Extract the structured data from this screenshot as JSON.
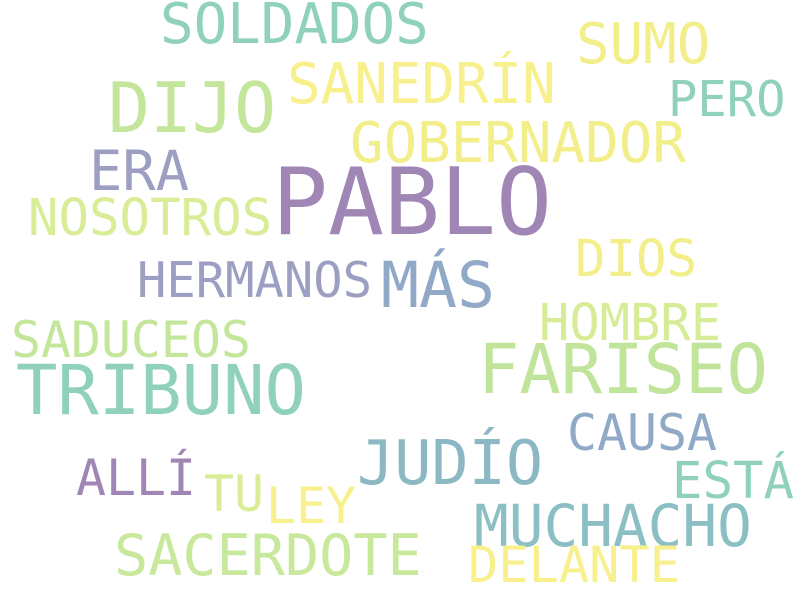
{
  "wordcloud": {
    "words": [
      {
        "text": "PABLO",
        "color": "#9f86b5"
      },
      {
        "text": "FARISEO",
        "color": "#bfe49a"
      },
      {
        "text": "TRIBUNO",
        "color": "#8fd1bb"
      },
      {
        "text": "DIJO",
        "color": "#c4e69b"
      },
      {
        "text": "JUDÍO",
        "color": "#8bb8c2"
      },
      {
        "text": "GOBERNADOR",
        "color": "#f2ee8a"
      },
      {
        "text": "SANEDRÍN",
        "color": "#f7f08d"
      },
      {
        "text": "SOLDADOS",
        "color": "#8fd1bb"
      },
      {
        "text": "MUCHACHO",
        "color": "#8bbfc4"
      },
      {
        "text": "SACERDOTE",
        "color": "#c8e89c"
      },
      {
        "text": "MÁS",
        "color": "#8fa9c6"
      },
      {
        "text": "SUMO",
        "color": "#f2ee8a"
      },
      {
        "text": "ERA",
        "color": "#9d9fc2"
      },
      {
        "text": "NOSOTROS",
        "color": "#d9ed96"
      },
      {
        "text": "HERMANOS",
        "color": "#9d9fc2"
      },
      {
        "text": "SADUCEOS",
        "color": "#c4e69b"
      },
      {
        "text": "HOMBRE",
        "color": "#d6ec96"
      },
      {
        "text": "CAUSA",
        "color": "#8fa9c6"
      },
      {
        "text": "DIOS",
        "color": "#f2ee8a"
      },
      {
        "text": "PERO",
        "color": "#8fd1bb"
      },
      {
        "text": "ESTÁ",
        "color": "#8fd1bb"
      },
      {
        "text": "ALLÍ",
        "color": "#9f86b5"
      },
      {
        "text": "LEY",
        "color": "#f7f08d"
      },
      {
        "text": "TU",
        "color": "#d9ed96"
      },
      {
        "text": "DELANTE",
        "color": "#f7f08d"
      }
    ]
  }
}
